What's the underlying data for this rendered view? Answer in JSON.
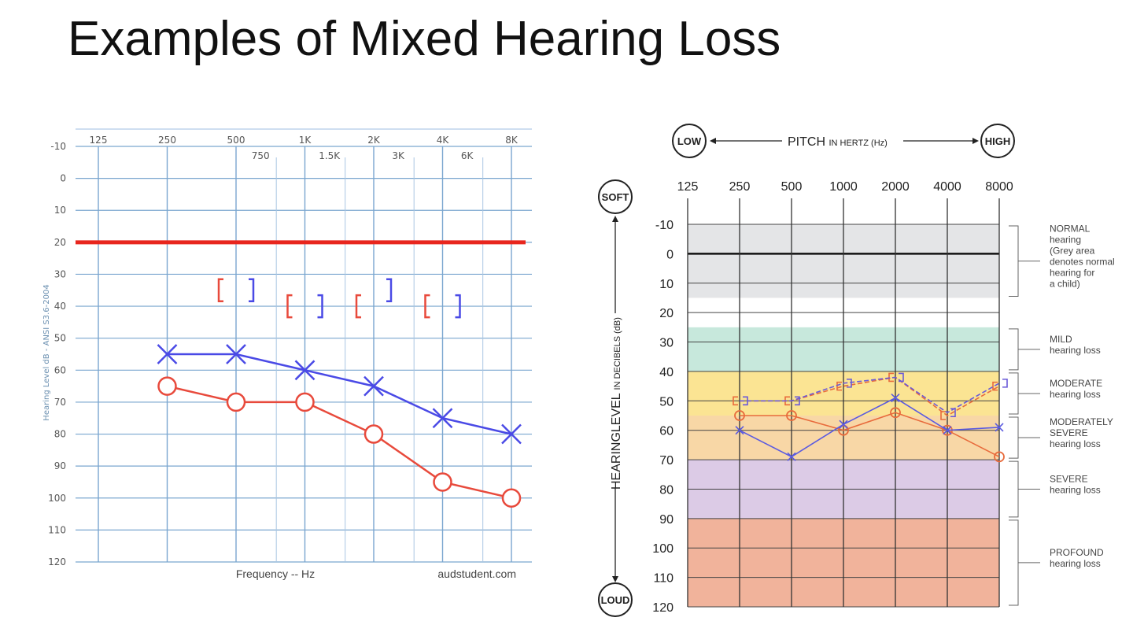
{
  "slide": {
    "title": "Examples of Mixed Hearing Loss"
  },
  "chart_data": [
    {
      "type": "line",
      "ylabel": "Hearing Level dB - ANSI S3.6-2004",
      "xlabel": "Frequency -- Hz",
      "credit": "audstudent.com",
      "x_major_labels": [
        "125",
        "250",
        "500",
        "1K",
        "2K",
        "4K",
        "8K"
      ],
      "x_minor_labels": [
        "750",
        "1.5K",
        "3K",
        "6K"
      ],
      "y_tick_labels": [
        "-10",
        "0",
        "10",
        "20",
        "30",
        "40",
        "50",
        "60",
        "70",
        "80",
        "90",
        "100",
        "110",
        "120"
      ],
      "ylim": [
        -10,
        120
      ],
      "y_inverted": true,
      "normal_limit_db": 20,
      "series": [
        {
          "marker": "x",
          "color": "#4a4ae6",
          "x": [
            "250",
            "500",
            "1K",
            "2K",
            "4K",
            "8K"
          ],
          "values": [
            55,
            55,
            60,
            65,
            75,
            80
          ]
        },
        {
          "marker": "o",
          "color": "#e84a3c",
          "x": [
            "250",
            "500",
            "1K",
            "2K",
            "4K",
            "8K"
          ],
          "values": [
            65,
            70,
            70,
            80,
            95,
            100
          ]
        }
      ],
      "bone_left": {
        "marker": "[",
        "color": "#e84a3c",
        "x": [
          "500",
          "1K",
          "2K",
          "4K"
        ],
        "values": [
          35,
          40,
          40,
          40
        ]
      },
      "bone_right": {
        "marker": "]",
        "color": "#4a4ae6",
        "x": [
          "500",
          "1K",
          "2K",
          "4K"
        ],
        "values": [
          35,
          40,
          35,
          40
        ]
      }
    },
    {
      "type": "line",
      "title": "PITCH IN HERTZ (Hz)",
      "title_plain": "PITCH",
      "title_small": "IN HERTZ (Hz)",
      "low_label": "LOW",
      "high_label": "HIGH",
      "soft_label": "SOFT",
      "loud_label": "LOUD",
      "ylabel": "HEARINGLEVEL IN DECIBELS (dB)",
      "ylabel_plain": "HEARINGLEVEL",
      "ylabel_small": "IN DECIBELS (dB)",
      "categories": [
        "125",
        "250",
        "500",
        "1000",
        "2000",
        "4000",
        "8000"
      ],
      "y_tick_labels": [
        "-10",
        "0",
        "10",
        "20",
        "30",
        "40",
        "50",
        "60",
        "70",
        "80",
        "90",
        "100",
        "110",
        "120"
      ],
      "ylim": [
        -10,
        120
      ],
      "y_inverted": true,
      "bands": [
        {
          "from": -10,
          "to": 15,
          "color": "#e4e5e7",
          "lines": [
            "NORMAL",
            "hearing",
            "(Grey area",
            "denotes normal",
            "hearing for",
            "a child)"
          ]
        },
        {
          "from": 15,
          "to": 25,
          "color": "#ffffff",
          "lines": []
        },
        {
          "from": 25,
          "to": 40,
          "color": "#c7e8dc",
          "lines": [
            "MILD",
            "hearing loss"
          ]
        },
        {
          "from": 40,
          "to": 55,
          "color": "#fbe493",
          "lines": [
            "MODERATE",
            "hearing loss"
          ]
        },
        {
          "from": 55,
          "to": 70,
          "color": "#f8d7a6",
          "lines": [
            "MODERATELY",
            "SEVERE",
            "hearing loss"
          ]
        },
        {
          "from": 70,
          "to": 90,
          "color": "#dccbe6",
          "lines": [
            "SEVERE",
            "hearing loss"
          ]
        },
        {
          "from": 90,
          "to": 120,
          "color": "#f1b39b",
          "lines": [
            "PROFOUND",
            "hearing loss"
          ]
        }
      ],
      "series": [
        {
          "marker": "square",
          "color": "#e86b3c",
          "x": [
            250,
            500,
            1000,
            2000,
            4000,
            8000
          ],
          "values": [
            50,
            50,
            45,
            42,
            55,
            45
          ]
        },
        {
          "marker": "bracket",
          "color": "#6a5ad8",
          "x": [
            250,
            500,
            1000,
            2000,
            4000,
            8000
          ],
          "values": [
            50,
            50,
            44,
            42,
            54,
            44
          ]
        },
        {
          "marker": "circle",
          "color": "#e86b3c",
          "x": [
            250,
            500,
            1000,
            2000,
            4000,
            8000
          ],
          "values": [
            55,
            55,
            60,
            54,
            60,
            69
          ]
        },
        {
          "marker": "x",
          "color": "#5a5ae0",
          "x": [
            250,
            500,
            1000,
            2000,
            4000,
            8000
          ],
          "values": [
            60,
            69,
            58,
            49,
            60,
            59
          ]
        }
      ]
    }
  ]
}
